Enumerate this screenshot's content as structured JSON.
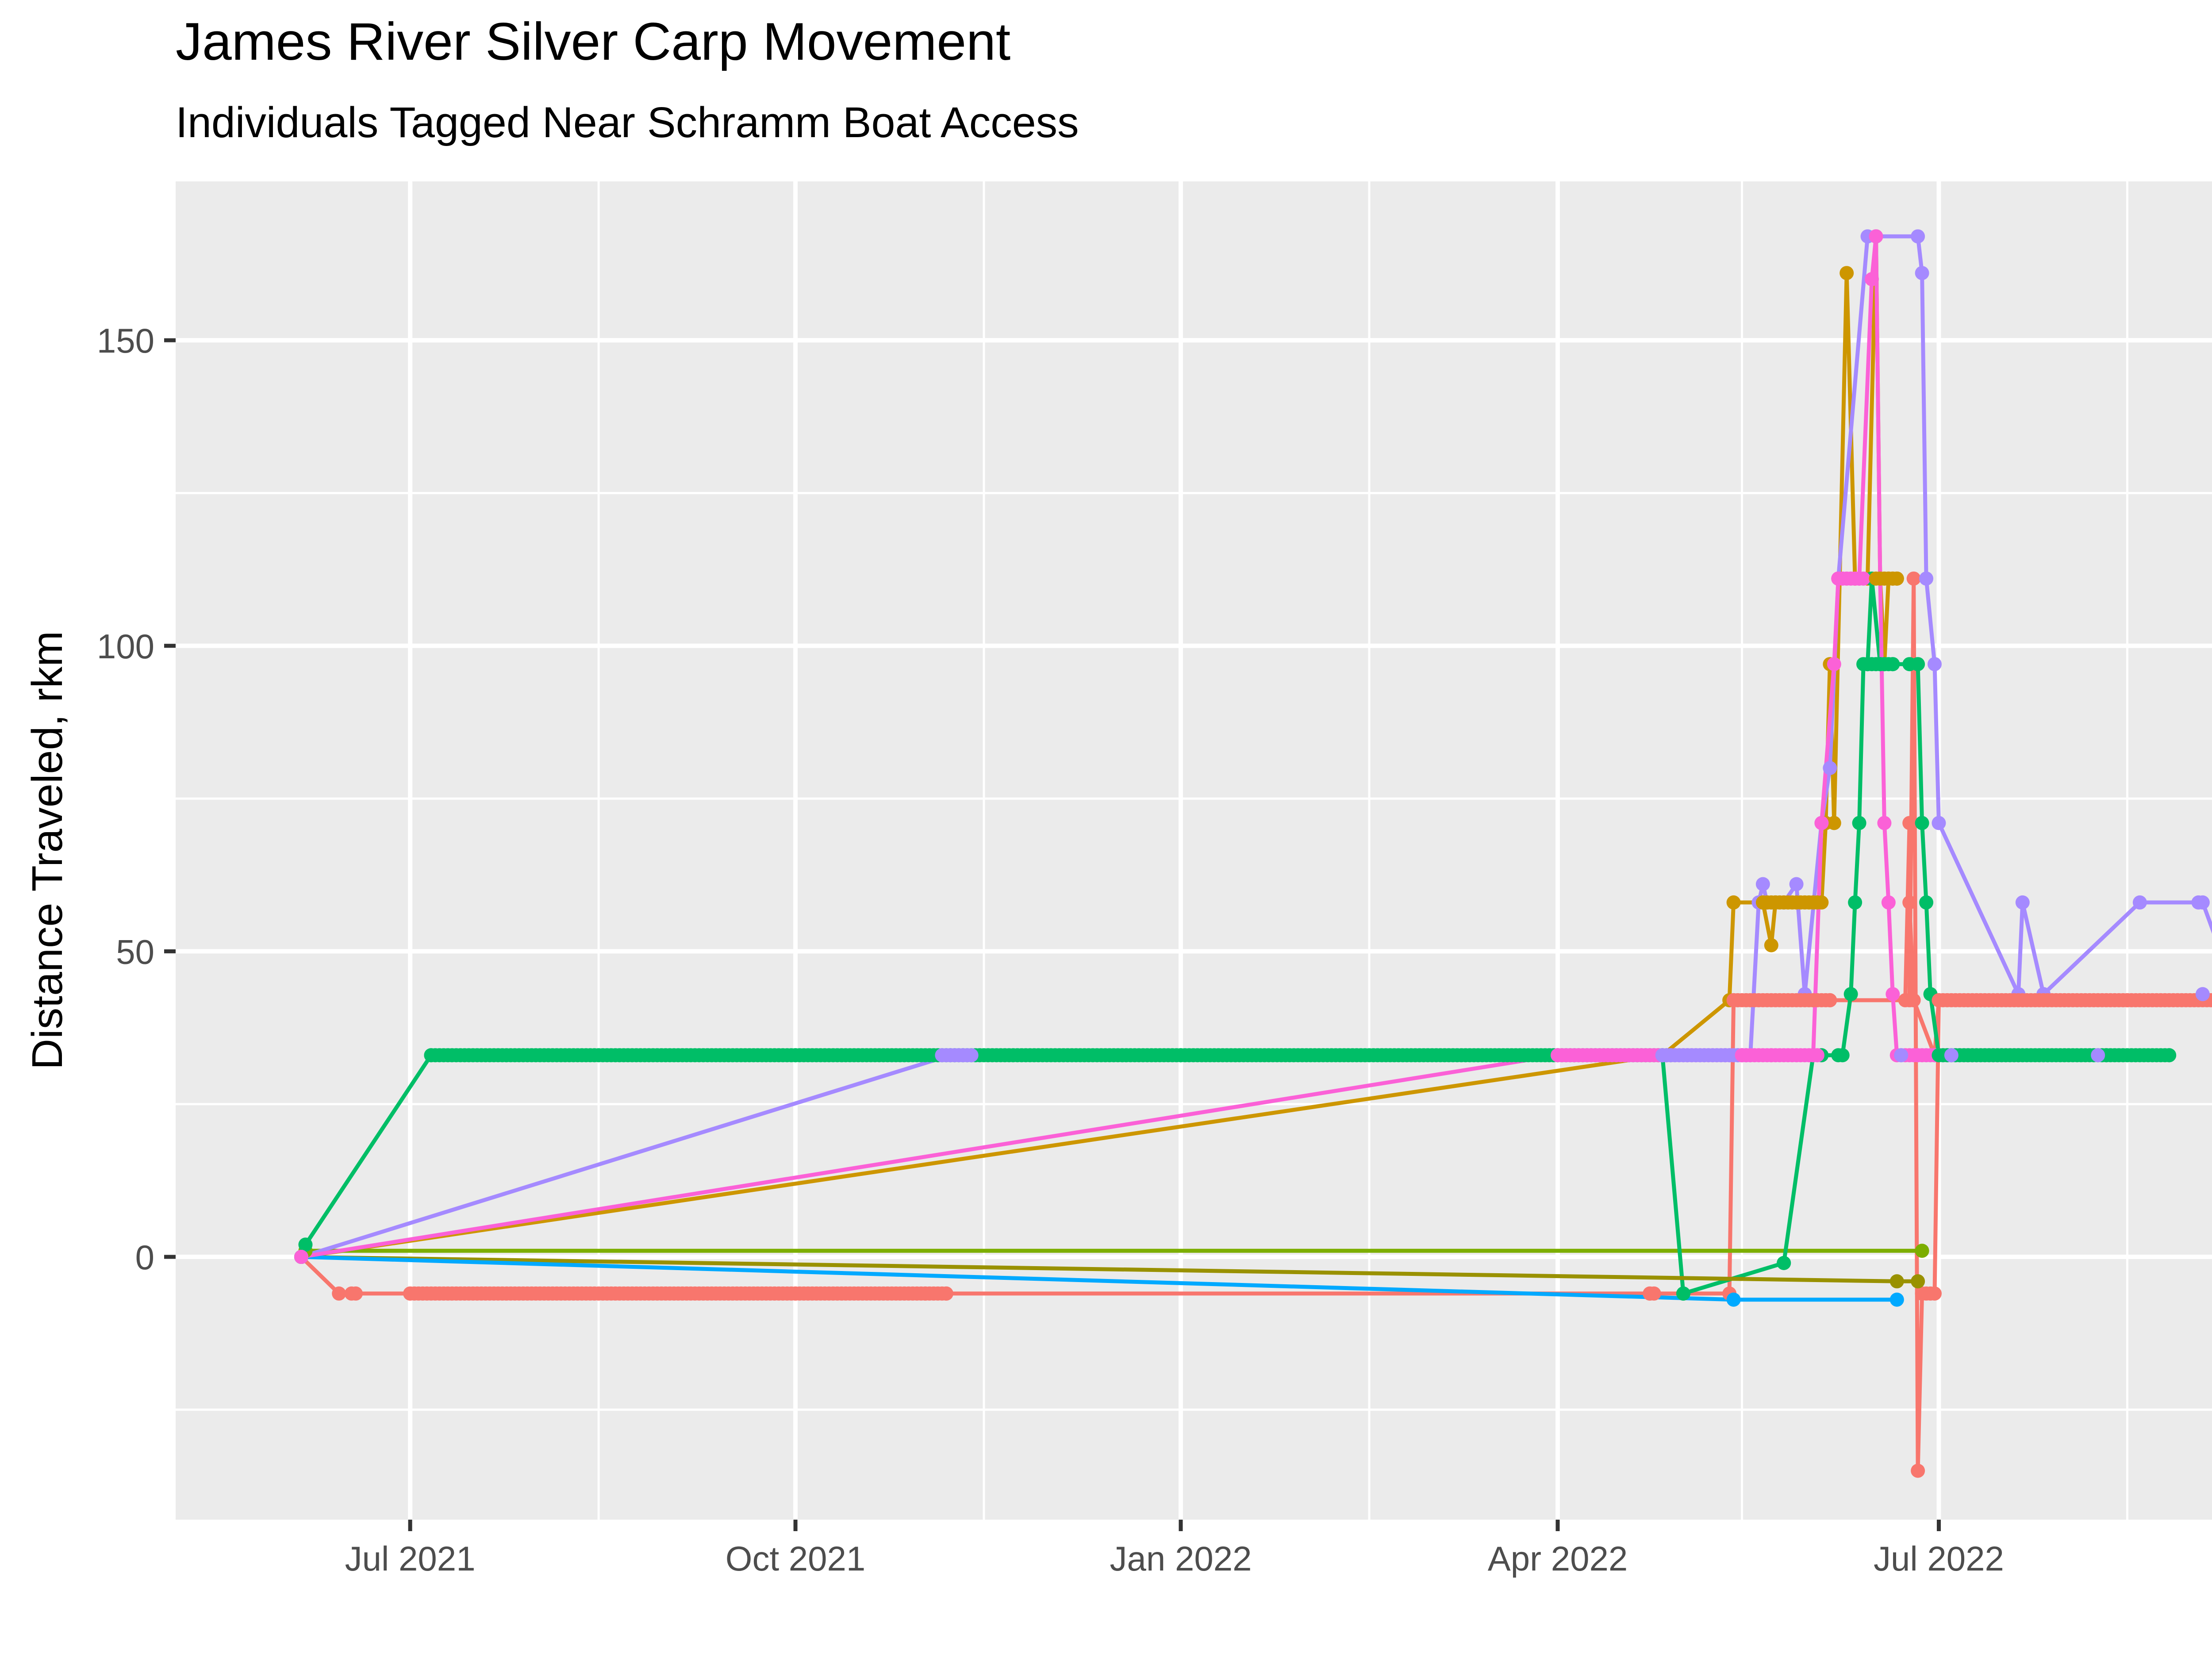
{
  "chart_data": {
    "type": "line",
    "title": "James River Silver Carp Movement",
    "subtitle": "Individuals Tagged Near Schramm Boat Access",
    "xlabel": "",
    "ylabel": "Distance Traveled, rkm",
    "x_type": "date",
    "xlim": [
      "2021-05-06",
      "2022-09-28"
    ],
    "ylim": [
      -43,
      176
    ],
    "x_ticks": [
      {
        "date": "2021-07-01",
        "label": "Jul 2021"
      },
      {
        "date": "2021-10-01",
        "label": "Oct 2021"
      },
      {
        "date": "2022-01-01",
        "label": "Jan 2022"
      },
      {
        "date": "2022-04-01",
        "label": "Apr 2022"
      },
      {
        "date": "2022-07-01",
        "label": "Jul 2022"
      }
    ],
    "x_minor_ticks": [
      "2021-08-15",
      "2021-11-15",
      "2022-02-15",
      "2022-05-15",
      "2022-08-15"
    ],
    "y_ticks": [
      0,
      50,
      100,
      150
    ],
    "y_minor_ticks": [
      -25,
      25,
      75,
      125
    ],
    "grid": true,
    "legend": "none",
    "series": [
      {
        "color": "#F8766D",
        "segments": [
          {
            "points": [
              [
                "2021-06-05",
                0
              ],
              [
                "2021-06-14",
                -6
              ],
              [
                "2021-06-17",
                -6
              ],
              [
                "2021-06-18",
                -6
              ],
              [
                "2021-07-01",
                -6
              ],
              [
                "2021-10-01",
                -6
              ],
              [
                "2021-11-01",
                -6
              ],
              [
                "2021-11-06",
                -6
              ],
              [
                "2022-04-23",
                -6
              ],
              [
                "2022-05-12",
                -6
              ],
              [
                "2022-05-13",
                42
              ],
              [
                "2022-06-01",
                42
              ],
              [
                "2022-06-05",
                42
              ],
              [
                "2022-06-24",
                42
              ],
              [
                "2022-06-25",
                111
              ],
              [
                "2022-06-26",
                -35
              ],
              [
                "2022-06-27",
                -6
              ],
              [
                "2022-06-28",
                -6
              ],
              [
                "2022-06-29",
                -6
              ],
              [
                "2022-06-30",
                -6
              ],
              [
                "2022-07-01",
                42
              ],
              [
                "2022-08-15",
                42
              ],
              [
                "2022-09-12",
                42
              ]
            ]
          },
          {
            "points": [
              [
                "2022-06-23",
                42
              ],
              [
                "2022-06-24",
                71
              ],
              [
                "2022-06-24",
                58
              ],
              [
                "2022-06-25",
                42
              ],
              [
                "2022-06-30",
                33
              ],
              [
                "2022-07-01",
                42
              ]
            ]
          }
        ]
      },
      {
        "color": "#CD9600",
        "segments": [
          {
            "points": [
              [
                "2021-06-05",
                0
              ],
              [
                "2022-04-26",
                33
              ],
              [
                "2022-05-12",
                42
              ],
              [
                "2022-05-13",
                58
              ],
              [
                "2022-05-20",
                58
              ],
              [
                "2022-06-01",
                58
              ],
              [
                "2022-06-03",
                58
              ],
              [
                "2022-06-04",
                71
              ],
              [
                "2022-06-05",
                97
              ],
              [
                "2022-06-06",
                71
              ],
              [
                "2022-06-09",
                161
              ],
              [
                "2022-06-11",
                111
              ],
              [
                "2022-06-14",
                111
              ],
              [
                "2022-06-16",
                167
              ],
              [
                "2022-06-17",
                111
              ],
              [
                "2022-06-18",
                97
              ],
              [
                "2022-06-19",
                111
              ],
              [
                "2022-06-20",
                111
              ],
              [
                "2022-06-21",
                111
              ]
            ]
          },
          {
            "points": [
              [
                "2022-05-20",
                58
              ],
              [
                "2022-05-22",
                51
              ],
              [
                "2022-05-23",
                58
              ]
            ]
          }
        ]
      },
      {
        "color": "#7CAE00",
        "segments": [
          {
            "points": [
              [
                "2021-06-05",
                0
              ],
              [
                "2021-06-06",
                1
              ],
              [
                "2022-06-27",
                1
              ]
            ]
          }
        ]
      },
      {
        "color": "#00BE67",
        "segments": [
          {
            "points": [
              [
                "2021-06-05",
                0
              ],
              [
                "2021-06-06",
                2
              ],
              [
                "2021-07-06",
                33
              ],
              [
                "2021-10-01",
                33
              ],
              [
                "2022-01-01",
                33
              ],
              [
                "2022-04-01",
                33
              ],
              [
                "2022-04-26",
                33
              ],
              [
                "2022-05-01",
                -6
              ],
              [
                "2022-05-25",
                -1
              ],
              [
                "2022-06-01",
                33
              ],
              [
                "2022-06-03",
                33
              ],
              [
                "2022-06-07",
                33
              ],
              [
                "2022-06-08",
                33
              ],
              [
                "2022-06-10",
                43
              ],
              [
                "2022-06-11",
                58
              ],
              [
                "2022-06-12",
                71
              ],
              [
                "2022-06-13",
                97
              ],
              [
                "2022-06-14",
                97
              ],
              [
                "2022-06-15",
                111
              ],
              [
                "2022-06-17",
                97
              ],
              [
                "2022-06-20",
                97
              ],
              [
                "2022-06-24",
                97
              ],
              [
                "2022-06-26",
                97
              ],
              [
                "2022-06-27",
                71
              ],
              [
                "2022-06-28",
                58
              ],
              [
                "2022-06-29",
                43
              ],
              [
                "2022-07-01",
                33
              ],
              [
                "2022-08-10",
                33
              ],
              [
                "2022-08-25",
                33
              ]
            ]
          }
        ]
      },
      {
        "color": "#999100",
        "segments": [
          {
            "points": [
              [
                "2021-06-05",
                0
              ],
              [
                "2022-06-21",
                -4
              ],
              [
                "2022-06-26",
                -4
              ]
            ]
          }
        ]
      },
      {
        "color": "#00A9FF",
        "segments": [
          {
            "points": [
              [
                "2021-06-05",
                0
              ],
              [
                "2022-05-13",
                -7
              ],
              [
                "2022-06-21",
                -7
              ]
            ]
          }
        ]
      },
      {
        "color": "#A58AFF",
        "segments": [
          {
            "points": [
              [
                "2021-06-05",
                0
              ],
              [
                "2021-11-07",
                33
              ],
              [
                "2021-11-10",
                33
              ],
              [
                "2022-04-26",
                33
              ],
              [
                "2022-05-11",
                33
              ],
              [
                "2022-05-15",
                33
              ],
              [
                "2022-05-17",
                33
              ],
              [
                "2022-05-19",
                58
              ],
              [
                "2022-05-20",
                61
              ],
              [
                "2022-05-21",
                58
              ],
              [
                "2022-05-25",
                58
              ],
              [
                "2022-05-28",
                61
              ],
              [
                "2022-05-30",
                43
              ],
              [
                "2022-06-03",
                71
              ],
              [
                "2022-06-05",
                80
              ],
              [
                "2022-06-07",
                111
              ],
              [
                "2022-06-14",
                167
              ],
              [
                "2022-06-16",
                167
              ],
              [
                "2022-06-26",
                167
              ],
              [
                "2022-06-27",
                161
              ],
              [
                "2022-06-28",
                111
              ],
              [
                "2022-06-30",
                97
              ],
              [
                "2022-07-01",
                71
              ],
              [
                "2022-07-20",
                43
              ],
              [
                "2022-07-21",
                58
              ],
              [
                "2022-07-26",
                43
              ],
              [
                "2022-08-18",
                58
              ],
              [
                "2022-09-01",
                58
              ],
              [
                "2022-09-02",
                58
              ],
              [
                "2022-09-10",
                43
              ]
            ]
          }
        ]
      },
      {
        "color": "#FB61D7",
        "segments": [
          {
            "points": [
              [
                "2021-06-05",
                0
              ],
              [
                "2022-04-01",
                33
              ],
              [
                "2022-04-26",
                33
              ],
              [
                "2022-05-15",
                33
              ],
              [
                "2022-05-22",
                33
              ],
              [
                "2022-06-01",
                33
              ],
              [
                "2022-06-03",
                71
              ],
              [
                "2022-06-06",
                97
              ],
              [
                "2022-06-07",
                111
              ],
              [
                "2022-06-12",
                111
              ],
              [
                "2022-06-15",
                160
              ],
              [
                "2022-06-16",
                167
              ],
              [
                "2022-06-17",
                111
              ],
              [
                "2022-06-18",
                71
              ],
              [
                "2022-06-19",
                58
              ],
              [
                "2022-06-20",
                43
              ],
              [
                "2022-06-21",
                33
              ],
              [
                "2022-07-01",
                33
              ],
              [
                "2022-07-20",
                33
              ]
            ]
          }
        ]
      }
    ],
    "dense_runs": [
      {
        "color": "#F8766D",
        "y": -6,
        "from": "2021-07-01",
        "to": "2021-11-06",
        "step_days": 1
      },
      {
        "color": "#00BE67",
        "y": 33,
        "from": "2021-07-06",
        "to": "2022-04-28",
        "step_days": 1
      },
      {
        "color": "#A58AFF",
        "y": 33,
        "from": "2021-11-05",
        "to": "2021-11-12",
        "step_days": 1
      },
      {
        "color": "#FB61D7",
        "y": 33,
        "from": "2022-04-01",
        "to": "2022-05-16",
        "step_days": 1
      },
      {
        "color": "#A58AFF",
        "y": 33,
        "from": "2022-04-26",
        "to": "2022-05-16",
        "step_days": 1
      },
      {
        "color": "#F8766D",
        "y": 42,
        "from": "2022-05-13",
        "to": "2022-06-05",
        "step_days": 1
      },
      {
        "color": "#FB61D7",
        "y": 33,
        "from": "2022-05-15",
        "to": "2022-06-02",
        "step_days": 1
      },
      {
        "color": "#CD9600",
        "y": 58,
        "from": "2022-05-20",
        "to": "2022-06-02",
        "step_days": 1
      },
      {
        "color": "#FB61D7",
        "y": 111,
        "from": "2022-06-07",
        "to": "2022-06-13",
        "step_days": 1
      },
      {
        "color": "#CD9600",
        "y": 111,
        "from": "2022-06-16",
        "to": "2022-06-21",
        "step_days": 1
      },
      {
        "color": "#00BE67",
        "y": 97,
        "from": "2022-06-14",
        "to": "2022-06-20",
        "step_days": 1
      },
      {
        "color": "#FB61D7",
        "y": 33,
        "from": "2022-06-21",
        "to": "2022-07-20",
        "step_days": 1
      },
      {
        "color": "#00BE67",
        "y": 33,
        "from": "2022-07-01",
        "to": "2022-08-25",
        "step_days": 1
      },
      {
        "color": "#F8766D",
        "y": 42,
        "from": "2022-07-01",
        "to": "2022-09-12",
        "step_days": 1
      }
    ],
    "extra_points": [
      {
        "color": "#F8766D",
        "x": "2022-04-23",
        "y": -6
      },
      {
        "color": "#F8766D",
        "x": "2022-04-24",
        "y": -6
      },
      {
        "color": "#00BE67",
        "x": "2022-05-01",
        "y": -6
      },
      {
        "color": "#00BE67",
        "x": "2022-05-25",
        "y": -1
      },
      {
        "color": "#A58AFF",
        "x": "2022-06-22",
        "y": 33
      },
      {
        "color": "#A58AFF",
        "x": "2022-07-04",
        "y": 33
      },
      {
        "color": "#A58AFF",
        "x": "2022-08-08",
        "y": 33
      },
      {
        "color": "#A58AFF",
        "x": "2022-09-02",
        "y": 43
      }
    ]
  }
}
